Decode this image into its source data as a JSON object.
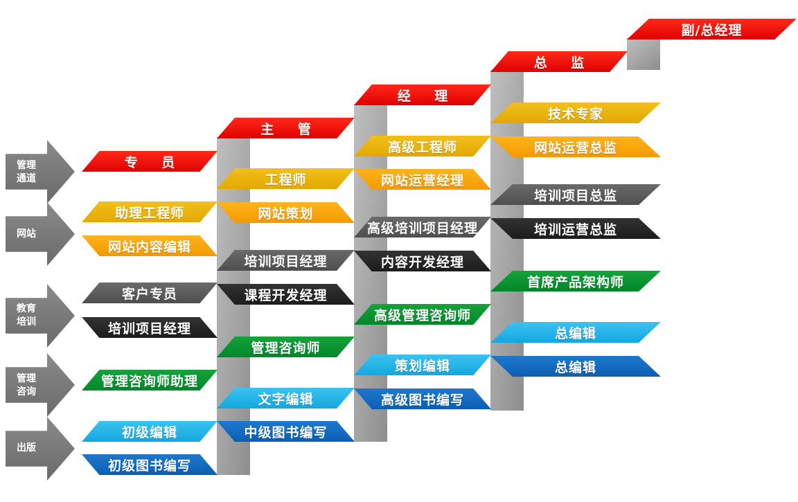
{
  "tracks": [
    {
      "id": "management",
      "label_lines": [
        "管理",
        "通道"
      ]
    },
    {
      "id": "website",
      "label_lines": [
        "网站"
      ]
    },
    {
      "id": "education",
      "label_lines": [
        "教育",
        "培训"
      ]
    },
    {
      "id": "consulting",
      "label_lines": [
        "管理",
        "咨询"
      ]
    },
    {
      "id": "publishing",
      "label_lines": [
        "出版"
      ]
    }
  ],
  "colors": {
    "red": "#e00000",
    "yellow": "#e2a900",
    "orange": "#f39a00",
    "dark_gray": "#555555",
    "black": "#222222",
    "green": "#00872a",
    "cyan": "#12a8e2",
    "blue": "#0b5fb3",
    "riser": "#a8a8a8"
  },
  "management": {
    "specialist": "专 员",
    "supervisor": "主 管",
    "manager": "经 理",
    "director": "总 监",
    "vp_gm": "副/总经理"
  },
  "website": {
    "assistant_engineer": "助理工程师",
    "content_editor": "网站内容编辑",
    "engineer": "工程师",
    "web_planner": "网站策划",
    "senior_engineer": "高级工程师",
    "ops_manager": "网站运营经理",
    "tech_expert": "技术专家",
    "ops_director": "网站运营总监"
  },
  "education": {
    "client_specialist": "客户专员",
    "training_pm_1": "培训项目经理",
    "training_pm_2": "培训项目经理",
    "course_dev_manager": "课程开发经理",
    "senior_training_pm": "高级培训项目经理",
    "content_dev_manager": "内容开发经理",
    "training_project_director": "培训项目总监",
    "training_ops_director": "培训运营总监"
  },
  "consulting": {
    "assistant_consultant": "管理咨询师助理",
    "consultant": "管理咨询师",
    "senior_consultant": "高级管理咨询师",
    "chief_architect": "首席产品架构师"
  },
  "publishing": {
    "junior_editor": "初级编辑",
    "junior_writer": "初级图书编写",
    "text_editor": "文字编辑",
    "mid_writer": "中级图书编写",
    "planning_editor": "策划编辑",
    "senior_writer": "高级图书编写",
    "chief_editor_1": "总编辑",
    "chief_editor_2": "总编辑"
  }
}
